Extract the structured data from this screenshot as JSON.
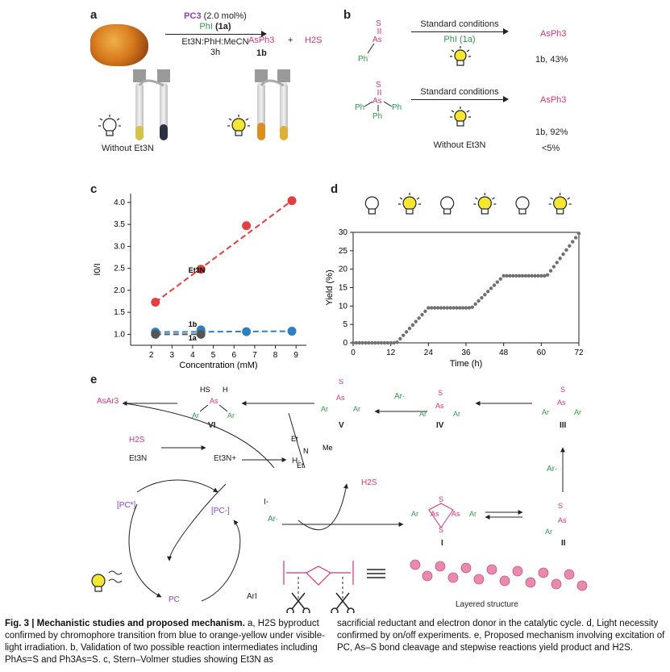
{
  "panel_a": {
    "letter": "a",
    "catalyst": "PC3",
    "catalyst_loading": "(2.0 mol%)",
    "reagent": "PhI",
    "reagent_code": "(1a)",
    "solvent": "Et3N:PhH:MeCN",
    "time": "3h",
    "product": "AsPh3",
    "product_code": "1b",
    "plus": "+",
    "byproduct": "H2S",
    "caption_without": "Without Et3N"
  },
  "panel_b": {
    "letter": "b",
    "row1_label": "Standard conditions",
    "row1_reagent": "PhI (1a)",
    "row1_product": "AsPh3",
    "row1_yield": "1b, 43%",
    "row2_label": "Standard conditions",
    "row2_product": "AsPh3",
    "row2_yield": "1b, 92%",
    "without": "Without Et3N",
    "without_yield": "<5%"
  },
  "chart_data": [
    {
      "letter": "c",
      "type": "scatter",
      "xlabel": "Concentration (mM)",
      "ylabel": "I0/I",
      "xlim": [
        1,
        9.5
      ],
      "ylim": [
        0.75,
        4.2
      ],
      "x_ticks": [
        2,
        3,
        4,
        5,
        6,
        7,
        8,
        9
      ],
      "y_ticks": [
        1.0,
        1.5,
        2.0,
        2.5,
        3.0,
        3.5,
        4.0
      ],
      "series": [
        {
          "name": "Et3N",
          "color": "#e0403f",
          "x": [
            2.2,
            4.4,
            6.6,
            8.8
          ],
          "y": [
            1.73,
            2.48,
            3.47,
            4.04
          ]
        },
        {
          "name": "1b",
          "color": "#2f7fc1",
          "x": [
            2.2,
            4.4,
            6.6,
            8.8
          ],
          "y": [
            1.05,
            1.1,
            1.06,
            1.07
          ]
        },
        {
          "name": "1a",
          "color": "#555555",
          "x": [
            2.2,
            4.4
          ],
          "y": [
            1.0,
            1.0
          ]
        }
      ]
    },
    {
      "letter": "d",
      "type": "scatter",
      "xlabel": "Time (h)",
      "ylabel": "Yield (%)",
      "xlim": [
        0,
        72
      ],
      "ylim": [
        0,
        30
      ],
      "x_ticks": [
        0,
        12,
        24,
        36,
        48,
        60,
        72
      ],
      "y_ticks": [
        0,
        5,
        10,
        15,
        20,
        25,
        30
      ],
      "color": "#707070",
      "light_periods": [
        "off",
        "on",
        "off",
        "on",
        "off",
        "on"
      ],
      "segments": [
        {
          "light": "off",
          "x0": 0,
          "x1": 12,
          "y0": 0,
          "y1": 0
        },
        {
          "light": "on",
          "x0": 12,
          "x1": 24,
          "y0": 0,
          "y1": 9.5
        },
        {
          "light": "off",
          "x0": 24,
          "x1": 36,
          "y0": 9.5,
          "y1": 9.5
        },
        {
          "light": "on",
          "x0": 36,
          "x1": 48,
          "y0": 9.5,
          "y1": 18.2
        },
        {
          "light": "off",
          "x0": 48,
          "x1": 60,
          "y0": 18.2,
          "y1": 18.2
        },
        {
          "light": "on",
          "x0": 60,
          "x1": 72,
          "y0": 18.2,
          "y1": 29.7
        }
      ]
    }
  ],
  "panel_e": {
    "letter": "e",
    "AsAr3": "AsAr3",
    "VI": "VI",
    "V": "V",
    "IV": "IV",
    "III": "III",
    "II": "II",
    "I": "I",
    "Ar_rad": "Ar·",
    "H2S": "H2S",
    "Et3N": "Et3N",
    "Et3N_plus": "Et3N+",
    "H_rad": "H·",
    "PC_star": "[PC*]",
    "PC_minus": "[PC-]",
    "PC": "PC",
    "ArI": "ArI",
    "I_minus": "I-",
    "layered": "Layered structure"
  },
  "caption": {
    "label": "Fig. 3 | Mechanistic studies and proposed mechanism.",
    "left": " a, H2S byproduct confirmed by chromophore transition from blue to orange-yellow under visible-light irradiation. b, Validation of two possible reaction intermediates including PhAs=S and Ph3As=S. c, Stern–Volmer studies showing Et3N as",
    "right": "sacrificial reductant and electron donor in the catalytic cycle. d, Light necessity confirmed by on/off experiments. e, Proposed mechanism involving excitation of PC, As–S bond cleavage and stepwise reactions yield product and H2S."
  }
}
